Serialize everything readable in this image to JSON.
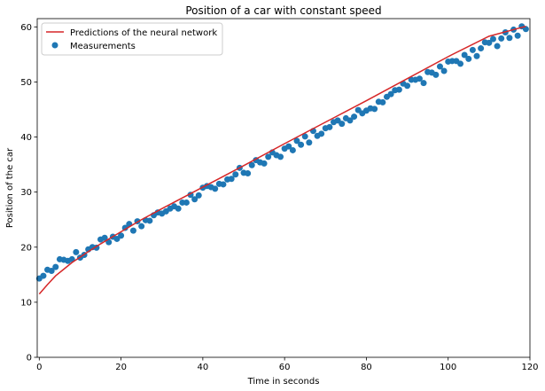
{
  "chart_data": {
    "type": "scatter",
    "title": "Position of a car with constant speed",
    "xlabel": "Time in seconds",
    "ylabel": "Position of the car",
    "xlim": [
      -0.5,
      120
    ],
    "ylim": [
      0,
      61.5
    ],
    "xticks": [
      0,
      20,
      40,
      60,
      80,
      100,
      120
    ],
    "yticks": [
      0,
      10,
      20,
      30,
      40,
      50,
      60
    ],
    "grid": false,
    "legend": {
      "placement": "top-left"
    },
    "series": [
      {
        "name": "Predictions of the neural network",
        "kind": "line",
        "color": "#d62728",
        "x": [
          0,
          2,
          4,
          6,
          8,
          10,
          12,
          15,
          20,
          25,
          30,
          40,
          50,
          60,
          70,
          80,
          90,
          100,
          110,
          119
        ],
        "y": [
          11.5,
          13.2,
          14.8,
          16.0,
          17.2,
          18.2,
          19.2,
          20.6,
          22.8,
          25.0,
          27.0,
          30.9,
          34.8,
          38.8,
          42.7,
          46.6,
          50.6,
          54.6,
          58.3,
          60.1
        ]
      },
      {
        "name": "Measurements",
        "kind": "scatter",
        "color": "#1f77b4",
        "x": [
          0,
          1,
          2,
          3,
          4,
          5,
          6,
          7,
          8,
          9,
          10,
          11,
          12,
          13,
          14,
          15,
          16,
          17,
          18,
          19,
          20,
          21,
          22,
          23,
          24,
          25,
          26,
          27,
          28,
          29,
          30,
          31,
          32,
          33,
          34,
          35,
          36,
          37,
          38,
          39,
          40,
          41,
          42,
          43,
          44,
          45,
          46,
          47,
          48,
          49,
          50,
          51,
          52,
          53,
          54,
          55,
          56,
          57,
          58,
          59,
          60,
          61,
          62,
          63,
          64,
          65,
          66,
          67,
          68,
          69,
          70,
          71,
          72,
          73,
          74,
          75,
          76,
          77,
          78,
          79,
          80,
          81,
          82,
          83,
          84,
          85,
          86,
          87,
          88,
          89,
          90,
          91,
          92,
          93,
          94,
          95,
          96,
          97,
          98,
          99,
          100,
          101,
          102,
          103,
          104,
          105,
          106,
          107,
          108,
          109,
          110,
          111,
          112,
          113,
          114,
          115,
          116,
          117,
          118,
          119
        ],
        "y": [
          14.3,
          14.8,
          15.9,
          15.7,
          16.4,
          17.8,
          17.7,
          17.5,
          17.8,
          19.1,
          18.1,
          18.6,
          19.6,
          20.0,
          19.9,
          21.4,
          21.7,
          20.9,
          21.9,
          21.5,
          22.1,
          23.5,
          24.2,
          23.0,
          24.7,
          23.8,
          24.9,
          24.8,
          25.8,
          26.3,
          26.1,
          26.5,
          27.0,
          27.4,
          27.0,
          28.1,
          28.1,
          29.5,
          28.7,
          29.4,
          30.8,
          31.1,
          30.9,
          30.6,
          31.5,
          31.4,
          32.3,
          32.4,
          33.2,
          34.4,
          33.5,
          33.4,
          34.9,
          35.8,
          35.4,
          35.2,
          36.4,
          37.2,
          36.7,
          36.4,
          37.9,
          38.3,
          37.6,
          39.3,
          38.6,
          40.1,
          39.0,
          41.1,
          40.2,
          40.6,
          41.6,
          41.8,
          42.7,
          43.0,
          42.4,
          43.4,
          43.0,
          43.7,
          44.9,
          44.3,
          44.8,
          45.2,
          45.1,
          46.4,
          46.3,
          47.3,
          47.8,
          48.5,
          48.6,
          49.7,
          49.3,
          50.4,
          50.4,
          50.6,
          49.8,
          51.8,
          51.7,
          51.3,
          52.8,
          52.0,
          53.7,
          53.8,
          53.8,
          53.3,
          54.9,
          54.2,
          55.8,
          54.7,
          56.1,
          57.2,
          57.1,
          57.8,
          56.5,
          57.9,
          59.0,
          58.0,
          59.5,
          58.4,
          60.1,
          59.6
        ]
      }
    ]
  }
}
